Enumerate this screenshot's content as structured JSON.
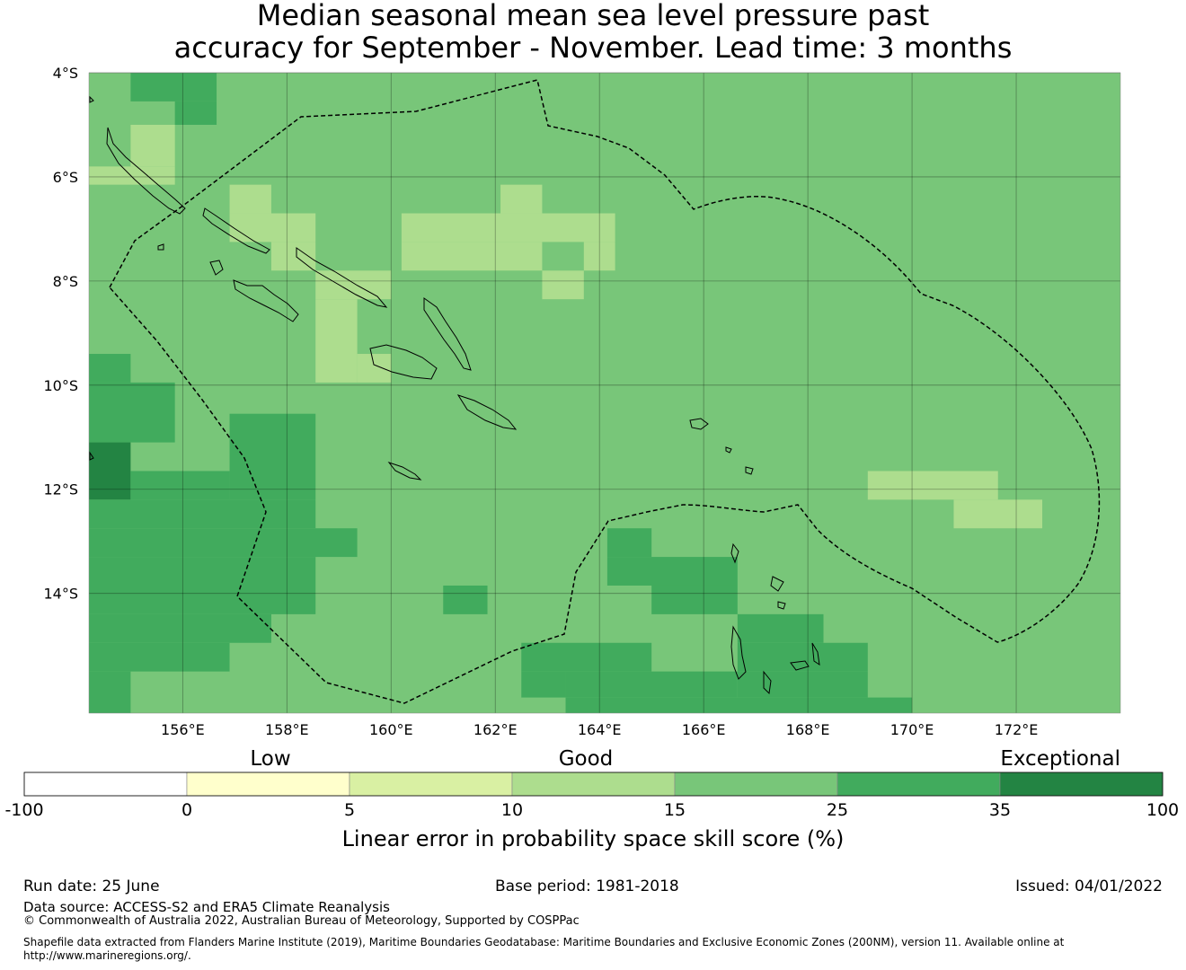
{
  "title": {
    "line1": "Median seasonal mean sea level pressure past",
    "line2": "accuracy for September - November. Lead time: 3 months"
  },
  "map": {
    "lat_labels": [
      "4°S",
      "6°S",
      "8°S",
      "10°S",
      "12°S",
      "14°S"
    ],
    "lon_labels": [
      "156°E",
      "158°E",
      "160°E",
      "162°E",
      "164°E",
      "166°E",
      "168°E",
      "170°E",
      "172°E"
    ],
    "extent": {
      "lon": [
        154.2,
        174.0
      ],
      "lat": [
        -4.0,
        -16.3
      ]
    },
    "background_category": 4,
    "grid_cells": [
      {
        "lon0": 155.0,
        "lat0": -4.0,
        "lon1": 156.65,
        "lat1": -4.55,
        "c": 5
      },
      {
        "lon0": 155.85,
        "lat0": -4.55,
        "lon1": 156.65,
        "lat1": -5.0,
        "c": 5
      },
      {
        "lon0": 155.0,
        "lat0": -5.0,
        "lon1": 155.85,
        "lat1": -5.8,
        "c": 3
      },
      {
        "lon0": 154.2,
        "lat0": -5.8,
        "lon1": 155.85,
        "lat1": -6.15,
        "c": 3
      },
      {
        "lon0": 156.9,
        "lat0": -6.15,
        "lon1": 157.7,
        "lat1": -6.7,
        "c": 3
      },
      {
        "lon0": 156.9,
        "lat0": -6.7,
        "lon1": 158.55,
        "lat1": -7.25,
        "c": 3
      },
      {
        "lon0": 157.7,
        "lat0": -7.25,
        "lon1": 158.55,
        "lat1": -7.8,
        "c": 3
      },
      {
        "lon0": 158.55,
        "lat0": -7.8,
        "lon1": 160.0,
        "lat1": -8.35,
        "c": 3
      },
      {
        "lon0": 158.55,
        "lat0": -8.35,
        "lon1": 159.35,
        "lat1": -9.95,
        "c": 3
      },
      {
        "lon0": 159.35,
        "lat0": -9.4,
        "lon1": 160.0,
        "lat1": -9.95,
        "c": 3
      },
      {
        "lon0": 162.1,
        "lat0": -6.15,
        "lon1": 162.9,
        "lat1": -6.7,
        "c": 3
      },
      {
        "lon0": 160.2,
        "lat0": -6.7,
        "lon1": 164.3,
        "lat1": -7.25,
        "c": 3
      },
      {
        "lon0": 160.2,
        "lat0": -7.25,
        "lon1": 162.9,
        "lat1": -7.8,
        "c": 3
      },
      {
        "lon0": 163.7,
        "lat0": -7.25,
        "lon1": 164.3,
        "lat1": -7.8,
        "c": 3
      },
      {
        "lon0": 162.9,
        "lat0": -7.8,
        "lon1": 163.7,
        "lat1": -8.35,
        "c": 3
      },
      {
        "lon0": 154.2,
        "lat0": -9.4,
        "lon1": 155.0,
        "lat1": -9.95,
        "c": 5
      },
      {
        "lon0": 154.2,
        "lat0": -9.95,
        "lon1": 155.85,
        "lat1": -11.1,
        "c": 5
      },
      {
        "lon0": 154.2,
        "lat0": -11.1,
        "lon1": 155.0,
        "lat1": -12.2,
        "c": 6
      },
      {
        "lon0": 155.0,
        "lat0": -11.65,
        "lon1": 156.9,
        "lat1": -12.2,
        "c": 5
      },
      {
        "lon0": 156.9,
        "lat0": -10.55,
        "lon1": 158.55,
        "lat1": -12.2,
        "c": 5
      },
      {
        "lon0": 154.2,
        "lat0": -12.2,
        "lon1": 158.55,
        "lat1": -12.75,
        "c": 5
      },
      {
        "lon0": 154.2,
        "lat0": -12.75,
        "lon1": 159.35,
        "lat1": -13.3,
        "c": 5
      },
      {
        "lon0": 154.2,
        "lat0": -13.3,
        "lon1": 158.55,
        "lat1": -14.4,
        "c": 5
      },
      {
        "lon0": 154.2,
        "lat0": -14.4,
        "lon1": 157.7,
        "lat1": -14.95,
        "c": 5
      },
      {
        "lon0": 154.2,
        "lat0": -14.95,
        "lon1": 156.9,
        "lat1": -15.5,
        "c": 5
      },
      {
        "lon0": 154.2,
        "lat0": -15.5,
        "lon1": 155.0,
        "lat1": -16.3,
        "c": 5
      },
      {
        "lon0": 161.0,
        "lat0": -13.85,
        "lon1": 161.85,
        "lat1": -14.4,
        "c": 5
      },
      {
        "lon0": 164.15,
        "lat0": -12.75,
        "lon1": 165.0,
        "lat1": -13.3,
        "c": 5
      },
      {
        "lon0": 164.15,
        "lat0": -13.3,
        "lon1": 166.65,
        "lat1": -13.85,
        "c": 5
      },
      {
        "lon0": 165.0,
        "lat0": -13.85,
        "lon1": 166.65,
        "lat1": -14.4,
        "c": 5
      },
      {
        "lon0": 166.65,
        "lat0": -14.4,
        "lon1": 168.3,
        "lat1": -14.95,
        "c": 5
      },
      {
        "lon0": 162.5,
        "lat0": -14.95,
        "lon1": 165.0,
        "lat1": -15.5,
        "c": 5
      },
      {
        "lon0": 166.65,
        "lat0": -14.95,
        "lon1": 169.15,
        "lat1": -15.5,
        "c": 5
      },
      {
        "lon0": 162.5,
        "lat0": -15.5,
        "lon1": 163.35,
        "lat1": -16.0,
        "c": 5
      },
      {
        "lon0": 163.35,
        "lat0": -15.5,
        "lon1": 166.65,
        "lat1": -16.0,
        "c": 5
      },
      {
        "lon0": 166.65,
        "lat0": -15.5,
        "lon1": 169.15,
        "lat1": -16.0,
        "c": 5
      },
      {
        "lon0": 163.35,
        "lat0": -16.0,
        "lon1": 170.0,
        "lat1": -16.3,
        "c": 5
      },
      {
        "lon0": 169.15,
        "lat0": -11.65,
        "lon1": 171.65,
        "lat1": -12.2,
        "c": 3
      },
      {
        "lon0": 170.8,
        "lat0": -12.2,
        "lon1": 172.5,
        "lat1": -12.75,
        "c": 3
      }
    ]
  },
  "legend": {
    "category_labels": [
      "Low",
      "Good",
      "Exceptional"
    ],
    "tick_labels": [
      "-100",
      "0",
      "5",
      "10",
      "15",
      "25",
      "35",
      "100"
    ],
    "colors": [
      "#ffffff",
      "#ffffcc",
      "#d9f0a3",
      "#addd8e",
      "#78c679",
      "#41ab5d",
      "#238443"
    ],
    "xlabel": "Linear error in probability space skill score (%)"
  },
  "footer": {
    "run_date": "Run date: 25 June",
    "base_period": "Base period: 1981-2018",
    "issued": "Issued: 04/01/2022",
    "data_source": "Data source: ACCESS-S2 and ERA5 Climate Reanalysis",
    "copyright": "© Commonwealth of Australia 2022, Australian Bureau of Meteorology, Supported by COSPPac",
    "shapefile": "Shapefile data extracted from Flanders Marine Institute (2019), Maritime Boundaries Geodatabase: Maritime Boundaries and Exclusive Economic Zones (200NM), version 11. Available online at http://www.marineregions.org/."
  }
}
